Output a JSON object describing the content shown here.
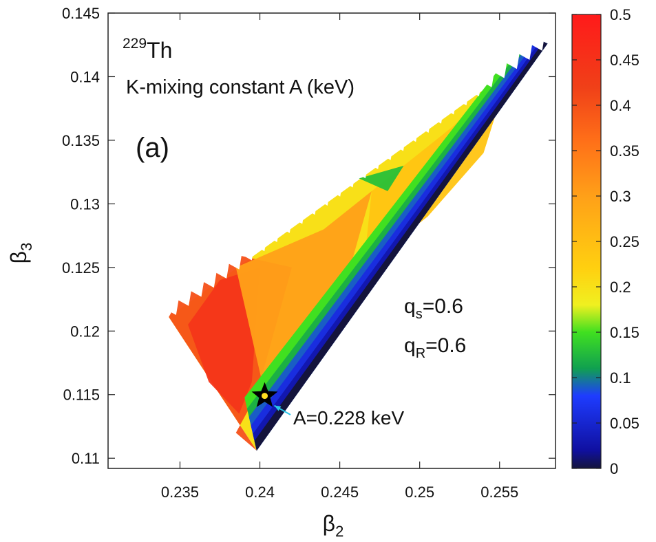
{
  "chart_data": {
    "type": "heatmap",
    "title_nucleus_mass": "229",
    "title_nucleus_symbol": "Th",
    "title_quantity": "K-mixing constant A (keV)",
    "panel_label": "(a)",
    "xlabel_base": "β",
    "xlabel_sub": "2",
    "ylabel_base": "β",
    "ylabel_sub": "3",
    "xlim": [
      0.2305,
      0.2585
    ],
    "ylim": [
      0.1092,
      0.145
    ],
    "x_ticks": [
      0.235,
      0.24,
      0.245,
      0.25,
      0.255
    ],
    "x_tick_labels": [
      "0.235",
      "0.24",
      "0.245",
      "0.25",
      "0.255"
    ],
    "y_ticks": [
      0.11,
      0.115,
      0.12,
      0.125,
      0.13,
      0.135,
      0.14,
      0.145
    ],
    "y_tick_labels": [
      "0.11",
      "0.115",
      "0.12",
      "0.125",
      "0.13",
      "0.135",
      "0.14",
      "0.145"
    ],
    "colorbar": {
      "range": [
        0,
        0.5
      ],
      "ticks": [
        0,
        0.05,
        0.1,
        0.15,
        0.2,
        0.25,
        0.3,
        0.35,
        0.4,
        0.45,
        0.5
      ],
      "tick_labels": [
        "0",
        "0.05",
        "0.1",
        "0.15",
        "0.2",
        "0.25",
        "0.3",
        "0.35",
        "0.4",
        "0.45",
        "0.5"
      ],
      "colors": [
        "#14143c",
        "#1010a0",
        "#1e3cff",
        "#10a050",
        "#40e020",
        "#f0f020",
        "#ffd010",
        "#ffa018",
        "#ff7018",
        "#f04018",
        "#ff1a1a"
      ],
      "stops": [
        0,
        0.02,
        0.08,
        0.11,
        0.15,
        0.18,
        0.22,
        0.3,
        0.36,
        0.42,
        0.5
      ]
    },
    "parameters": [
      {
        "base": "q",
        "sub": "s",
        "value": "=0.6"
      },
      {
        "base": "q",
        "sub": "R",
        "value": "=0.6"
      }
    ],
    "marker": {
      "x": 0.2403,
      "y": 0.1149,
      "label": "A=0.228 keV",
      "value": 0.228
    },
    "region": {
      "outline": [
        [
          0.2343,
          0.1211
        ],
        [
          0.2398,
          0.1106
        ],
        [
          0.258,
          0.1426
        ]
      ],
      "bands": [
        {
          "left_edge": [
            [
              0.2341,
              0.1211
            ],
            [
              0.258,
              0.1428
            ]
          ],
          "right_edge": [
            [
              0.2397,
              0.1105
            ],
            [
              0.2582,
              0.1424
            ]
          ],
          "value": 0.0
        },
        {
          "left_edge": [
            [
              0.2341,
              0.1211
            ],
            [
              0.2576,
              0.1428
            ]
          ],
          "right_edge": [
            [
              0.2398,
              0.111
            ],
            [
              0.2578,
              0.1424
            ]
          ],
          "value": 0.05
        },
        {
          "left_edge": [
            [
              0.2341,
              0.1211
            ],
            [
              0.2574,
              0.1428
            ]
          ],
          "right_edge": [
            [
              0.2399,
              0.1114
            ],
            [
              0.2575,
              0.1424
            ]
          ],
          "value": 0.1
        },
        {
          "left_edge": [
            [
              0.2341,
              0.1211
            ],
            [
              0.2572,
              0.1428
            ]
          ],
          "right_edge": [
            [
              0.24,
              0.1118
            ],
            [
              0.2573,
              0.1424
            ]
          ],
          "value": 0.15
        },
        {
          "left_edge": [
            [
              0.2341,
              0.1211
            ],
            [
              0.2571,
              0.1428
            ]
          ],
          "right_edge": [
            [
              0.2401,
              0.1122
            ],
            [
              0.2572,
              0.1424
            ]
          ],
          "value": 0.2
        }
      ],
      "patches": [
        {
          "points": [
            [
              0.2343,
              0.1211
            ],
            [
              0.2358,
              0.1245
            ],
            [
              0.2385,
              0.126
            ],
            [
              0.242,
              0.125
            ],
            [
              0.2398,
              0.115
            ],
            [
              0.2385,
              0.112
            ],
            [
              0.2398,
              0.1106
            ]
          ],
          "value": 0.4
        },
        {
          "points": [
            [
              0.2355,
              0.1205
            ],
            [
              0.2375,
              0.124
            ],
            [
              0.24,
              0.125
            ],
            [
              0.2395,
              0.116
            ],
            [
              0.2387,
              0.1135
            ],
            [
              0.2368,
              0.116
            ]
          ],
          "value": 0.44
        },
        {
          "points": [
            [
              0.2385,
              0.125
            ],
            [
              0.244,
              0.128
            ],
            [
              0.247,
              0.131
            ],
            [
              0.2452,
              0.123
            ],
            [
              0.2425,
              0.118
            ],
            [
              0.2405,
              0.114
            ]
          ],
          "value": 0.3
        },
        {
          "points": [
            [
              0.247,
              0.131
            ],
            [
              0.252,
              0.136
            ],
            [
              0.2555,
              0.14
            ],
            [
              0.254,
              0.134
            ],
            [
              0.2505,
              0.129
            ],
            [
              0.2465,
              0.125
            ]
          ],
          "value": 0.24
        },
        {
          "points": [
            [
              0.2462,
              0.132
            ],
            [
              0.249,
              0.133
            ],
            [
              0.248,
              0.131
            ]
          ],
          "value": 0.13
        }
      ]
    }
  }
}
